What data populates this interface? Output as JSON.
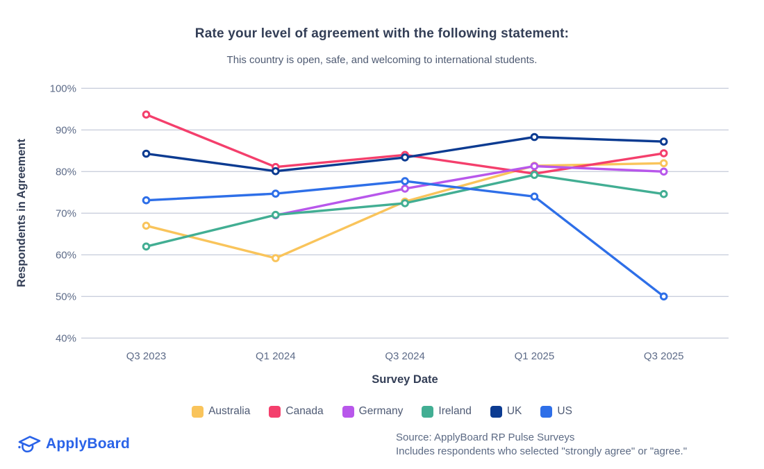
{
  "header": {
    "title": "Rate your level of agreement with the following statement:",
    "subtitle": "This country is open, safe, and welcoming to international students."
  },
  "chart_data": {
    "type": "line",
    "title": "Rate your level of agreement with the following statement:",
    "subtitle": "This country is open, safe, and welcoming to international students.",
    "xlabel": "Survey Date",
    "ylabel": "Respondents in Agreement",
    "categories": [
      "Q3 2023",
      "Q1 2024",
      "Q3 2024",
      "Q1 2025",
      "Q3 2025"
    ],
    "y_ticks": [
      "100%",
      "90%",
      "80%",
      "70%",
      "60%",
      "50%",
      "40%"
    ],
    "ylim": [
      40,
      100
    ],
    "grid": true,
    "legend_position": "bottom",
    "marker": "open-circle",
    "series": [
      {
        "name": "Australia",
        "color": "#F9C45B",
        "values": [
          67.0,
          59.2,
          72.8,
          81.4,
          82.0
        ]
      },
      {
        "name": "Canada",
        "color": "#F43F6C",
        "values": [
          93.7,
          81.1,
          84.0,
          79.5,
          84.4
        ]
      },
      {
        "name": "Germany",
        "color": "#B857EB",
        "values": [
          null,
          69.5,
          75.9,
          81.3,
          80.0
        ]
      },
      {
        "name": "Ireland",
        "color": "#42AE93",
        "values": [
          62.0,
          69.6,
          72.4,
          79.2,
          74.6
        ]
      },
      {
        "name": "UK",
        "color": "#0C3B91",
        "values": [
          84.3,
          80.1,
          83.4,
          88.3,
          87.2
        ]
      },
      {
        "name": "US",
        "color": "#2E6FE8",
        "values": [
          73.1,
          74.7,
          77.7,
          74.0,
          50.0
        ]
      }
    ]
  },
  "footer": {
    "logo_text": "ApplyBoard",
    "source_line1": "Source: ApplyBoard RP Pulse Surveys",
    "source_line2": "Includes respondents who selected \"strongly agree\" or \"agree.\""
  },
  "colors": {
    "background": "#FFFFFF",
    "grid": "#CACFDD",
    "axis_text": "#5D6B88",
    "title_text": "#333E56",
    "subtitle_text": "#4E5A72",
    "legend_text": "#4E5A74",
    "source_text": "#5C6A84",
    "logo_blue": "#2A63E8"
  }
}
